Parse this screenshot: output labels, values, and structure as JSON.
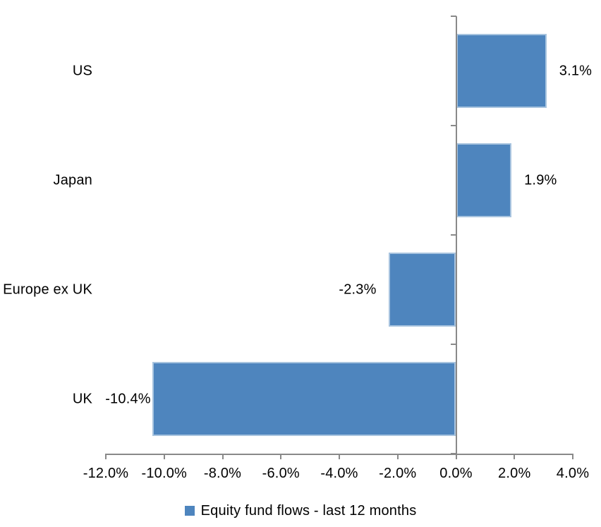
{
  "background_color": "#FFFFFF",
  "chart_data": {
    "type": "bar",
    "orientation": "horizontal",
    "title": "",
    "xlabel": "",
    "ylabel": "",
    "categories": [
      "US",
      "Japan",
      "Europe ex UK",
      "UK"
    ],
    "values": [
      3.1,
      1.9,
      -2.3,
      -10.4
    ],
    "value_labels": [
      "3.1%",
      "1.9%",
      "-2.3%",
      "-10.4%"
    ],
    "series": [
      {
        "name": "Equity fund flows - last 12 months",
        "values": [
          3.1,
          1.9,
          -2.3,
          -10.4
        ]
      }
    ],
    "xlim": [
      -12,
      4
    ],
    "x_tick_values": [
      -12,
      -10,
      -8,
      -6,
      -4,
      -2,
      0,
      2,
      4
    ],
    "x_tick_labels": [
      "-12.0%",
      "-10.0%",
      "-8.0%",
      "-6.0%",
      "-4.0%",
      "-2.0%",
      "0.0%",
      "2.0%",
      "4.0%"
    ],
    "grid": false,
    "legend_position": "bottom",
    "legend": [
      {
        "label": "Equity fund flows - last 12 months",
        "color": "#4E85BE"
      }
    ],
    "bar_color": "#4E85BE",
    "bar_border_color": "#A8C4DF",
    "axis_color": "#898989",
    "text_color": "#000000"
  }
}
